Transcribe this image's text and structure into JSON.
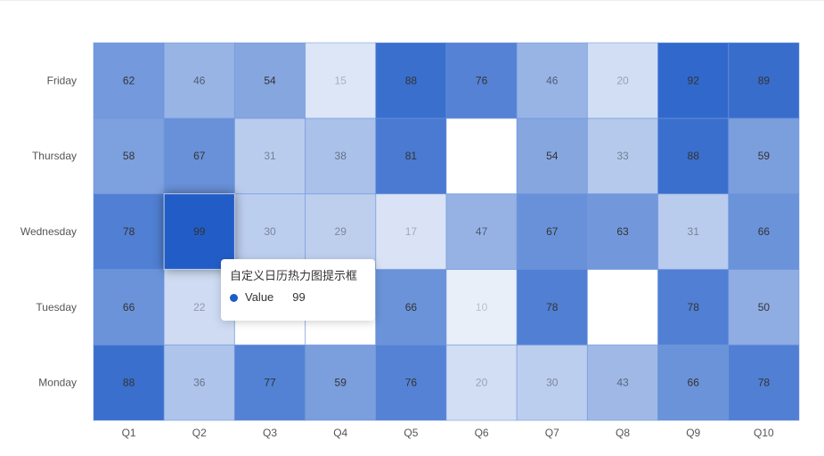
{
  "chart_data": {
    "type": "heatmap",
    "categories": [
      "Q1",
      "Q2",
      "Q3",
      "Q4",
      "Q5",
      "Q6",
      "Q7",
      "Q8",
      "Q9",
      "Q10"
    ],
    "rows": [
      "Monday",
      "Tuesday",
      "Wednesday",
      "Thursday",
      "Friday"
    ],
    "values": [
      [
        88,
        36,
        77,
        59,
        76,
        20,
        30,
        43,
        66,
        78
      ],
      [
        66,
        22,
        null,
        null,
        66,
        10,
        78,
        null,
        78,
        50
      ],
      [
        78,
        99,
        30,
        29,
        17,
        47,
        67,
        63,
        31,
        66
      ],
      [
        58,
        67,
        31,
        38,
        81,
        null,
        54,
        33,
        88,
        59
      ],
      [
        62,
        46,
        54,
        15,
        88,
        76,
        46,
        20,
        92,
        89
      ]
    ],
    "value_range": [
      0,
      100
    ],
    "colors": {
      "min": "#ffffff",
      "max": "#1f5bc6"
    },
    "highlighted_cell": {
      "row": "Wednesday",
      "column": "Q2",
      "value": 99
    },
    "legend": "none"
  },
  "tooltip": {
    "title": "自定义日历热力图提示框",
    "series_label": "Value",
    "value": "99",
    "marker_color": "#1f5bc6"
  }
}
